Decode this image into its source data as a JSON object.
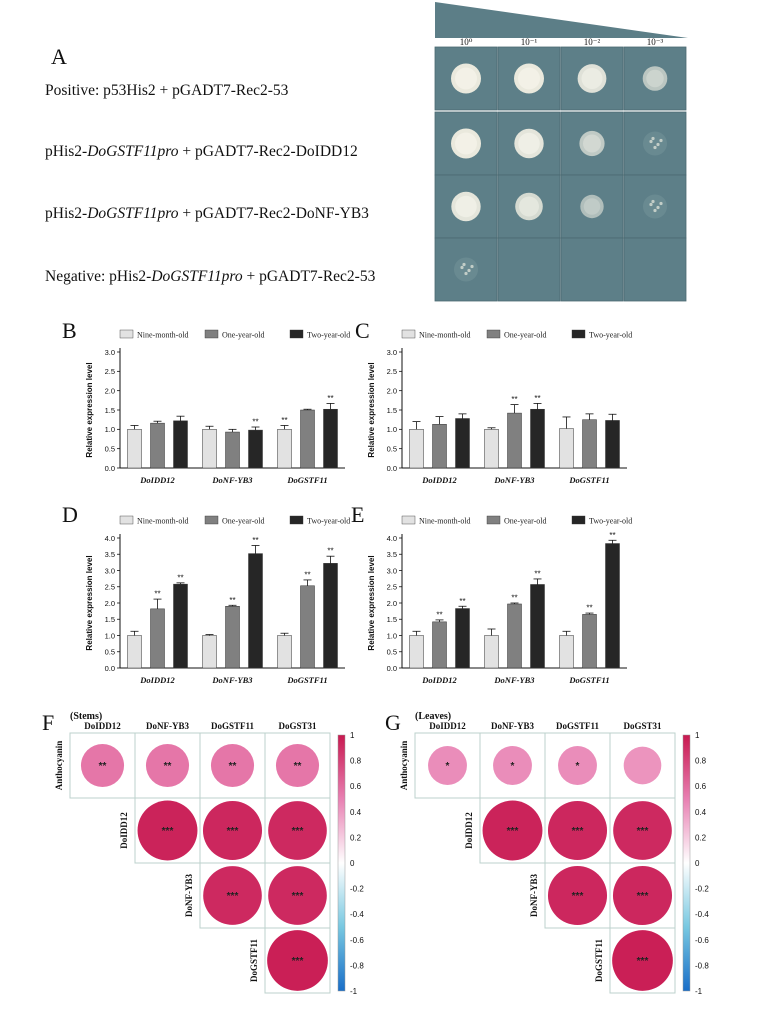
{
  "panel_a": {
    "label": "A",
    "dilutions": [
      "10⁰",
      "10⁻¹",
      "10⁻²",
      "10⁻³"
    ],
    "rows": [
      {
        "parts": [
          {
            "t": "Positive: p53His2 + pGADT7-Rec2-53",
            "i": false
          }
        ]
      },
      {
        "parts": [
          {
            "t": "pHis2-",
            "i": false
          },
          {
            "t": "DoGSTF11pro",
            "i": true
          },
          {
            "t": " + pGADT7-Rec2-DoIDD12",
            "i": false
          }
        ]
      },
      {
        "parts": [
          {
            "t": "pHis2-",
            "i": false
          },
          {
            "t": "DoGSTF11pro",
            "i": true
          },
          {
            "t": " + pGADT7-Rec2-DoNF-YB3",
            "i": false
          }
        ]
      },
      {
        "parts": [
          {
            "t": "Negative: pHis2-",
            "i": false
          },
          {
            "t": "DoGSTF11pro",
            "i": true
          },
          {
            "t": " + pGADT7-Rec2-53",
            "i": false
          }
        ]
      }
    ],
    "growth": [
      [
        1.0,
        1.0,
        0.9,
        0.55
      ],
      [
        1.0,
        0.95,
        0.6,
        0.2
      ],
      [
        0.95,
        0.8,
        0.45,
        0.15
      ],
      [
        0.1,
        0.0,
        0.0,
        0.0
      ]
    ]
  },
  "colors": {
    "nine": "#e2e2e2",
    "one": "#808080",
    "two": "#262626",
    "plate": "#5d7f88",
    "plate_light": "#7d9aa1",
    "colony": "#f1efe2",
    "pos": "#c8285f",
    "neg": "#1f78c8"
  },
  "chart_data": [
    {
      "panel": "B",
      "type": "bar",
      "categories": [
        "DoIDD12",
        "DoNF-YB3",
        "DoGSTF11"
      ],
      "series": [
        {
          "name": "Nine-month-old",
          "values": [
            1.0,
            1.0,
            1.0
          ],
          "err": [
            0.1,
            0.08,
            0.1
          ]
        },
        {
          "name": "One-year-old",
          "values": [
            1.16,
            0.93,
            1.5
          ],
          "err": [
            0.05,
            0.07,
            0.02
          ]
        },
        {
          "name": "Two-year-old",
          "values": [
            1.22,
            0.98,
            1.52
          ],
          "err": [
            0.12,
            0.08,
            0.15
          ]
        }
      ],
      "sig": [
        [
          "",
          "",
          "**"
        ],
        [
          "",
          "",
          ""
        ],
        [
          "",
          "**",
          "**"
        ]
      ],
      "ylabel": "Relative expression level",
      "ylim": [
        0,
        3.0
      ],
      "ticks": [
        0,
        0.5,
        1.0,
        1.5,
        2.0,
        2.5,
        3.0
      ]
    },
    {
      "panel": "C",
      "type": "bar",
      "categories": [
        "DoIDD12",
        "DoNF-YB3",
        "DoGSTF11"
      ],
      "series": [
        {
          "name": "Nine-month-old",
          "values": [
            1.0,
            1.0,
            1.02
          ],
          "err": [
            0.2,
            0.04,
            0.3
          ]
        },
        {
          "name": "One-year-old",
          "values": [
            1.13,
            1.42,
            1.25
          ],
          "err": [
            0.2,
            0.22,
            0.15
          ]
        },
        {
          "name": "Two-year-old",
          "values": [
            1.28,
            1.52,
            1.23
          ],
          "err": [
            0.12,
            0.15,
            0.16
          ]
        }
      ],
      "sig": [
        [
          "",
          "",
          ""
        ],
        [
          "",
          "**",
          ""
        ],
        [
          "",
          "**",
          ""
        ]
      ],
      "ylabel": "Relative expression level",
      "ylim": [
        0,
        3.0
      ],
      "ticks": [
        0,
        0.5,
        1.0,
        1.5,
        2.0,
        2.5,
        3.0
      ]
    },
    {
      "panel": "D",
      "type": "bar",
      "categories": [
        "DoIDD12",
        "DoNF-YB3",
        "DoGSTF11"
      ],
      "series": [
        {
          "name": "Nine-month-old",
          "values": [
            1.0,
            1.0,
            1.0
          ],
          "err": [
            0.13,
            0.03,
            0.07
          ]
        },
        {
          "name": "One-year-old",
          "values": [
            1.82,
            1.9,
            2.53
          ],
          "err": [
            0.3,
            0.03,
            0.18
          ]
        },
        {
          "name": "Two-year-old",
          "values": [
            2.58,
            3.52,
            3.22
          ],
          "err": [
            0.04,
            0.25,
            0.22
          ]
        }
      ],
      "sig": [
        [
          "",
          "",
          ""
        ],
        [
          "**",
          "**",
          "**"
        ],
        [
          "**",
          "**",
          "**"
        ]
      ],
      "ylabel": "Relative expression level",
      "ylim": [
        0,
        4.0
      ],
      "ticks": [
        0,
        0.5,
        1.0,
        1.5,
        2.0,
        2.5,
        3.0,
        3.5,
        4.0
      ]
    },
    {
      "panel": "E",
      "type": "bar",
      "categories": [
        "DoIDD12",
        "DoNF-YB3",
        "DoGSTF11"
      ],
      "series": [
        {
          "name": "Nine-month-old",
          "values": [
            1.0,
            1.0,
            1.0
          ],
          "err": [
            0.13,
            0.2,
            0.13
          ]
        },
        {
          "name": "One-year-old",
          "values": [
            1.42,
            1.97,
            1.65
          ],
          "err": [
            0.06,
            0.03,
            0.04
          ]
        },
        {
          "name": "Two-year-old",
          "values": [
            1.83,
            2.57,
            3.83
          ],
          "err": [
            0.07,
            0.17,
            0.1
          ]
        }
      ],
      "sig": [
        [
          "",
          "",
          ""
        ],
        [
          "**",
          "**",
          "**"
        ],
        [
          "**",
          "**",
          "**"
        ]
      ],
      "ylabel": "Relative expression level",
      "ylim": [
        0,
        4.0
      ],
      "ticks": [
        0,
        0.5,
        1.0,
        1.5,
        2.0,
        2.5,
        3.0,
        3.5,
        4.0
      ]
    },
    {
      "panel": "F",
      "type": "heatmap",
      "title": "(Stems)",
      "cols": [
        "DoIDD12",
        "DoNF-YB3",
        "DoGSTF11",
        "DoGST31"
      ],
      "rows": [
        "Anthocyanin",
        "DoIDD12",
        "DoNF-YB3",
        "DoGSTF11"
      ],
      "cells": [
        {
          "r": 0,
          "c": 0,
          "v": 0.55,
          "s": "**"
        },
        {
          "r": 0,
          "c": 1,
          "v": 0.55,
          "s": "**"
        },
        {
          "r": 0,
          "c": 2,
          "v": 0.55,
          "s": "**"
        },
        {
          "r": 0,
          "c": 3,
          "v": 0.55,
          "s": "**"
        },
        {
          "r": 1,
          "c": 1,
          "v": 0.95,
          "s": "***"
        },
        {
          "r": 1,
          "c": 2,
          "v": 0.93,
          "s": "***"
        },
        {
          "r": 1,
          "c": 3,
          "v": 0.92,
          "s": "***"
        },
        {
          "r": 2,
          "c": 2,
          "v": 0.92,
          "s": "***"
        },
        {
          "r": 2,
          "c": 3,
          "v": 0.92,
          "s": "***"
        },
        {
          "r": 3,
          "c": 3,
          "v": 0.97,
          "s": "***"
        }
      ],
      "scale": [
        "1",
        "0.8",
        "0.6",
        "0.4",
        "0.2",
        "0",
        "-0.2",
        "-0.4",
        "-0.6",
        "-0.8",
        "-1"
      ]
    },
    {
      "panel": "G",
      "type": "heatmap",
      "title": "(Leaves)",
      "cols": [
        "DoIDD12",
        "DoNF-YB3",
        "DoGSTF11",
        "DoGST31"
      ],
      "rows": [
        "Anthocyanin",
        "DoIDD12",
        "DoNF-YB3",
        "DoGSTF11"
      ],
      "cells": [
        {
          "r": 0,
          "c": 0,
          "v": 0.45,
          "s": "*"
        },
        {
          "r": 0,
          "c": 1,
          "v": 0.45,
          "s": "*"
        },
        {
          "r": 0,
          "c": 2,
          "v": 0.45,
          "s": "*"
        },
        {
          "r": 0,
          "c": 3,
          "v": 0.42,
          "s": ""
        },
        {
          "r": 1,
          "c": 1,
          "v": 0.95,
          "s": "***"
        },
        {
          "r": 1,
          "c": 2,
          "v": 0.93,
          "s": "***"
        },
        {
          "r": 1,
          "c": 3,
          "v": 0.92,
          "s": "***"
        },
        {
          "r": 2,
          "c": 2,
          "v": 0.93,
          "s": "***"
        },
        {
          "r": 2,
          "c": 3,
          "v": 0.93,
          "s": "***"
        },
        {
          "r": 3,
          "c": 3,
          "v": 0.97,
          "s": "***"
        }
      ],
      "scale": [
        "1",
        "0.8",
        "0.6",
        "0.4",
        "0.2",
        "0",
        "-0.2",
        "-0.4",
        "-0.6",
        "-0.8",
        "-1"
      ]
    }
  ]
}
